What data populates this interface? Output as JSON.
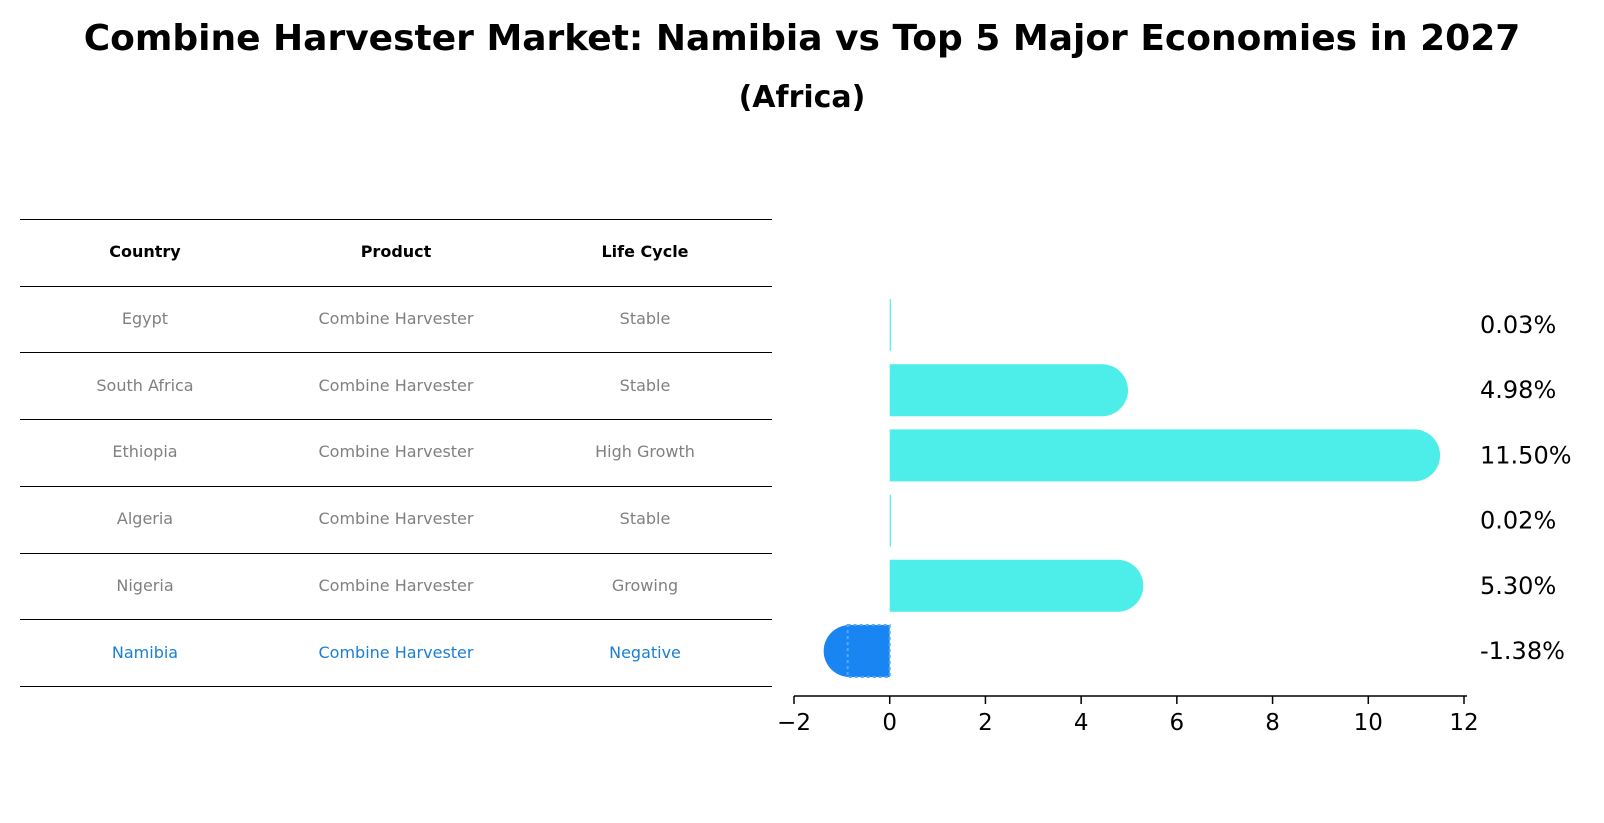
{
  "chart_data": {
    "type": "bar",
    "orientation": "horizontal",
    "title": "Combine Harvester Market: Namibia vs Top 5 Major Economies in 2027",
    "subtitle": "(Africa)",
    "xlim": [
      -2,
      12
    ],
    "xticks": [
      -2,
      0,
      2,
      4,
      6,
      8,
      10,
      12
    ],
    "xtick_labels": [
      "−2",
      "0",
      "2",
      "4",
      "6",
      "8",
      "10",
      "12"
    ],
    "table_headers": [
      "Country",
      "Product",
      "Life Cycle"
    ],
    "rows": [
      {
        "country": "Egypt",
        "product": "Combine Harvester",
        "life_cycle": "Stable",
        "value": 0.03,
        "label": "0.03%",
        "highlight": false
      },
      {
        "country": "South Africa",
        "product": "Combine Harvester",
        "life_cycle": "Stable",
        "value": 4.98,
        "label": "4.98%",
        "highlight": false
      },
      {
        "country": "Ethiopia",
        "product": "Combine Harvester",
        "life_cycle": "High Growth",
        "value": 11.5,
        "label": "11.50%",
        "highlight": false
      },
      {
        "country": "Algeria",
        "product": "Combine Harvester",
        "life_cycle": "Stable",
        "value": 0.02,
        "label": "0.02%",
        "highlight": false
      },
      {
        "country": "Nigeria",
        "product": "Combine Harvester",
        "life_cycle": "Growing",
        "value": 5.3,
        "label": "5.30%",
        "highlight": false
      },
      {
        "country": "Namibia",
        "product": "Combine Harvester",
        "life_cycle": "Negative",
        "value": -1.38,
        "label": "-1.38%",
        "highlight": true
      }
    ],
    "colors": {
      "bar": "#4DEEEA",
      "highlight_bar": "#1885F2",
      "row_text": "#808080",
      "highlight_text": "#1A7FD4"
    }
  }
}
